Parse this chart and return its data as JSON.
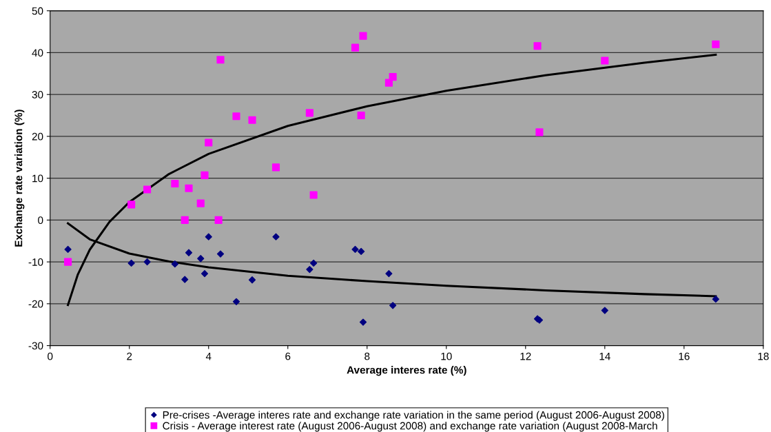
{
  "chart_data": {
    "type": "scatter",
    "xlabel": "Average interes rate (%)",
    "ylabel": "Exchange rate variation (%)",
    "xlim": [
      0,
      18
    ],
    "xticks": [
      0,
      2,
      4,
      6,
      8,
      10,
      12,
      14,
      16,
      18
    ],
    "ylim": [
      -30,
      50
    ],
    "yticks": [
      -30,
      -20,
      -10,
      0,
      10,
      20,
      30,
      40,
      50
    ],
    "grid": "y",
    "legend": "bottom",
    "series": [
      {
        "name": "Pre-crises -Average interes rate and exchange rate variation in the same period (August 2006-August 2008)",
        "color": "#000080",
        "marker": "diamond",
        "x": [
          0.45,
          2.05,
          2.45,
          3.15,
          3.4,
          3.5,
          3.8,
          3.9,
          4.0,
          4.3,
          4.7,
          5.1,
          5.7,
          6.55,
          6.65,
          7.7,
          7.85,
          7.9,
          8.55,
          8.65,
          12.3,
          12.35,
          14.0,
          16.8
        ],
        "values": [
          -7,
          -10.3,
          -10,
          -10.5,
          -14.2,
          -7.8,
          -9.2,
          -12.8,
          -4,
          -8.1,
          -19.5,
          -14.3,
          -4,
          -11.8,
          -10.3,
          -7,
          -7.5,
          -24.4,
          -12.8,
          -20.4,
          -23.6,
          -23.9,
          -21.6,
          -18.9
        ]
      },
      {
        "name": "Crisis - Average interest rate (August 2006-August 2008) and exchange rate variation (August 2008-March",
        "color": "#ff00ff",
        "marker": "square",
        "x": [
          0.45,
          2.05,
          2.45,
          3.15,
          3.4,
          3.5,
          3.8,
          3.9,
          4.0,
          4.25,
          4.3,
          4.7,
          5.1,
          5.7,
          6.55,
          6.65,
          7.7,
          7.85,
          7.9,
          8.55,
          8.65,
          12.3,
          12.35,
          14.0,
          16.8
        ],
        "values": [
          -10,
          3.7,
          7.3,
          8.7,
          0,
          7.6,
          4,
          10.7,
          18.5,
          0,
          38.3,
          24.8,
          23.9,
          12.6,
          25.6,
          6,
          41.2,
          25,
          44,
          32.8,
          34.2,
          41.6,
          21,
          38.1,
          42
        ]
      },
      {
        "type": "line",
        "color": "#000000",
        "marker": "none",
        "line_style": "solid",
        "x": [
          0.45,
          0.7,
          1,
          1.5,
          2,
          3,
          4,
          6,
          8,
          10,
          12.5,
          15,
          16.8
        ],
        "values": [
          -20.3,
          -13,
          -7.1,
          -0.4,
          4.3,
          11,
          15.8,
          22.5,
          27.2,
          30.9,
          34.6,
          37.6,
          39.5
        ]
      },
      {
        "type": "line",
        "color": "#000000",
        "marker": "none",
        "line_style": "solid",
        "x": [
          0.45,
          1,
          2,
          3,
          4,
          6,
          8,
          10,
          12.5,
          15,
          16.8
        ],
        "values": [
          -0.8,
          -4.6,
          -8,
          -9.9,
          -11.3,
          -13.3,
          -14.6,
          -15.7,
          -16.8,
          -17.7,
          -18.2
        ]
      }
    ]
  }
}
